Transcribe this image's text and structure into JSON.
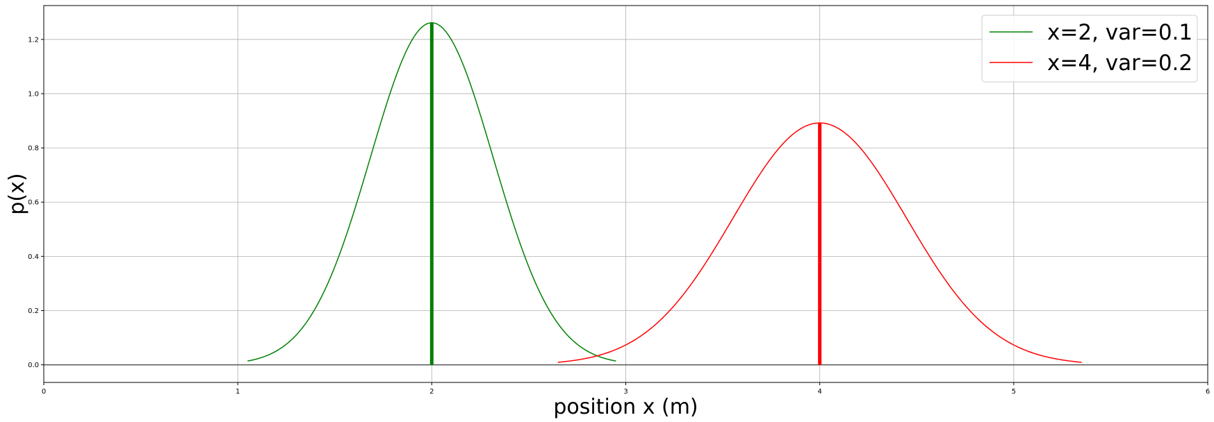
{
  "chart_data": {
    "type": "line",
    "xlabel": "position x (m)",
    "ylabel": "p(x)",
    "xlim": [
      0,
      6
    ],
    "ylim": [
      -0.065,
      1.325
    ],
    "xticks": [
      0,
      1,
      2,
      3,
      4,
      5,
      6
    ],
    "xtick_labels": [
      "0",
      "1",
      "2",
      "3",
      "4",
      "5",
      "6"
    ],
    "yticks": [
      0.0,
      0.2,
      0.4,
      0.6,
      0.8,
      1.0,
      1.2
    ],
    "ytick_labels": [
      "0.0",
      "0.2",
      "0.4",
      "0.6",
      "0.8",
      "1.0",
      "1.2"
    ],
    "grid": true,
    "legend_position": "top-right",
    "baseline_y": 0,
    "series": [
      {
        "name": "x=2, var=0.1",
        "color": "#008000",
        "mean": 2,
        "variance": 0.1,
        "x_range": [
          1.05,
          2.95
        ],
        "peak": 1.26,
        "mean_marker": {
          "x": 2,
          "y_top": 1.26
        }
      },
      {
        "name": "x=4, var=0.2",
        "color": "#ff0000",
        "mean": 4,
        "variance": 0.2,
        "x_range": [
          2.65,
          5.35
        ],
        "peak": 0.89,
        "mean_marker": {
          "x": 4,
          "y_top": 0.89
        }
      }
    ]
  }
}
